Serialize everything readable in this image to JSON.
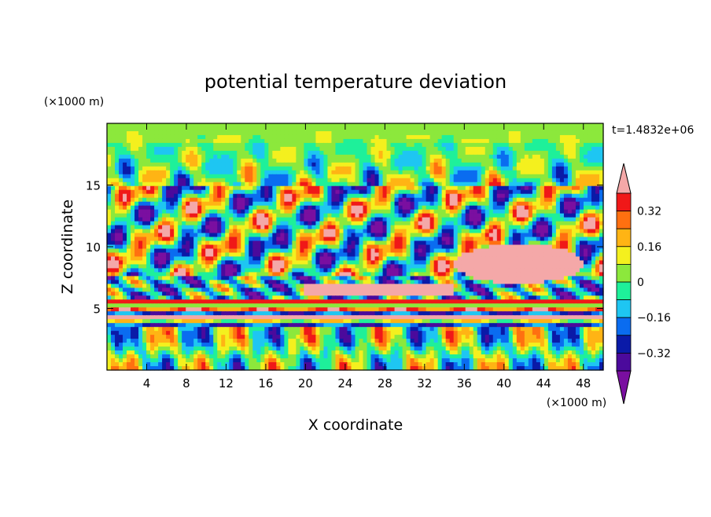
{
  "chart_data": {
    "type": "heatmap",
    "title": "potential temperature deviation",
    "xlabel": "X coordinate",
    "ylabel": "Z coordinate",
    "x_unit": "(×1000 m)",
    "y_unit": "(×1000 m)",
    "time_label": "t=1.4832e+06",
    "xlim": [
      0,
      50
    ],
    "ylim": [
      0,
      20
    ],
    "x_ticks": [
      4,
      8,
      12,
      16,
      20,
      24,
      28,
      32,
      36,
      40,
      44,
      48
    ],
    "y_ticks": [
      5,
      10,
      15
    ],
    "grid": false,
    "colorbar": {
      "placement": "right",
      "levels": [
        -0.4,
        -0.32,
        -0.24,
        -0.16,
        -0.08,
        0,
        0.08,
        0.16,
        0.24,
        0.32,
        0.4
      ],
      "tick_labels": [
        "0.32",
        "0.16",
        "0",
        "−0.16",
        "−0.32"
      ],
      "tick_values": [
        0.32,
        0.16,
        0,
        -0.16,
        -0.32
      ],
      "colors": [
        "#7a0fa0",
        "#4b0a9c",
        "#0a1aa8",
        "#0a6cf0",
        "#1ec6f2",
        "#1ef09a",
        "#8ce83c",
        "#f4f01e",
        "#ffb414",
        "#ff7010",
        "#f01818",
        "#f4a8a8"
      ]
    },
    "notes_regions": "field is a contoured 2-D array; values shown range roughly -0.4 to above 0.4"
  }
}
